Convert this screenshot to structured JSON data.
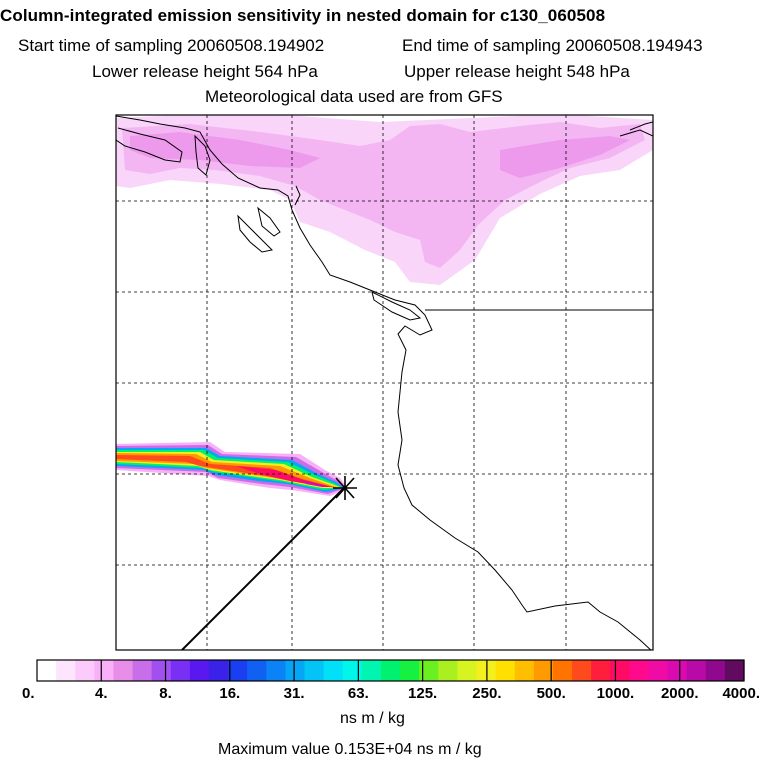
{
  "header": {
    "title": "Column-integrated emission sensitivity in nested domain for c130_060508",
    "start_time": "Start time of sampling 20060508.194902",
    "end_time": "End time of sampling 20060508.194943",
    "lower_release": "Lower release height  564 hPa",
    "upper_release": "Upper release height  548 hPa",
    "met_data": "Meteorological data used are from GFS"
  },
  "chart_data": {
    "type": "heatmap",
    "title": "Column-integrated emission sensitivity in nested domain for c130_060508",
    "units": "ns m / kg",
    "max_value_text": "Maximum value  0.153E+04 ns m / kg",
    "max_value": 1530,
    "colorbar": {
      "tick_labels": [
        "0.",
        "4.",
        "8.",
        "16.",
        "31.",
        "63.",
        "125.",
        "250.",
        "500.",
        "1000.",
        "2000.",
        "4000."
      ],
      "colors": [
        "#ffffff",
        "#fde5fd",
        "#fccbfc",
        "#f9b0f9",
        "#e88de8",
        "#c86ee8",
        "#a24ff0",
        "#7a2ff5",
        "#5a18f0",
        "#3a22e8",
        "#1a3ff0",
        "#1060f2",
        "#0b82f5",
        "#06a5f6",
        "#04c4f7",
        "#00e0f8",
        "#00f6e8",
        "#00f5b0",
        "#00f070",
        "#16f040",
        "#6af020",
        "#aaf020",
        "#d8f420",
        "#f4f020",
        "#ffe000",
        "#ffbe00",
        "#ff9a00",
        "#ff7400",
        "#ff4a1e",
        "#ff1e3c",
        "#ff0a64",
        "#ff0a8c",
        "#f00aa6",
        "#d80ab0",
        "#b80aa6",
        "#90088e",
        "#600a60"
      ]
    },
    "map": {
      "release_marker": "X",
      "grid": true,
      "features": [
        "coastline",
        "plume",
        "trajectory-line"
      ]
    }
  }
}
